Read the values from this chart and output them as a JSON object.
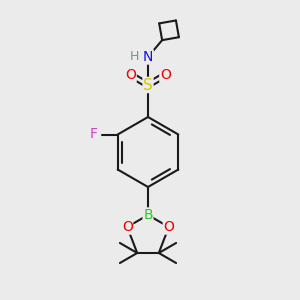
{
  "background_color": "#ebebeb",
  "bond_color": "#1a1a1a",
  "bond_width": 1.5,
  "atom_colors": {
    "C": "#1a1a1a",
    "H": "#6a9898",
    "N": "#1010ee",
    "O": "#ee0000",
    "S": "#cccc00",
    "F": "#cc44cc",
    "B": "#22cc22"
  },
  "figsize": [
    3.0,
    3.0
  ],
  "dpi": 100,
  "xlim": [
    0,
    300
  ],
  "ylim": [
    0,
    300
  ]
}
